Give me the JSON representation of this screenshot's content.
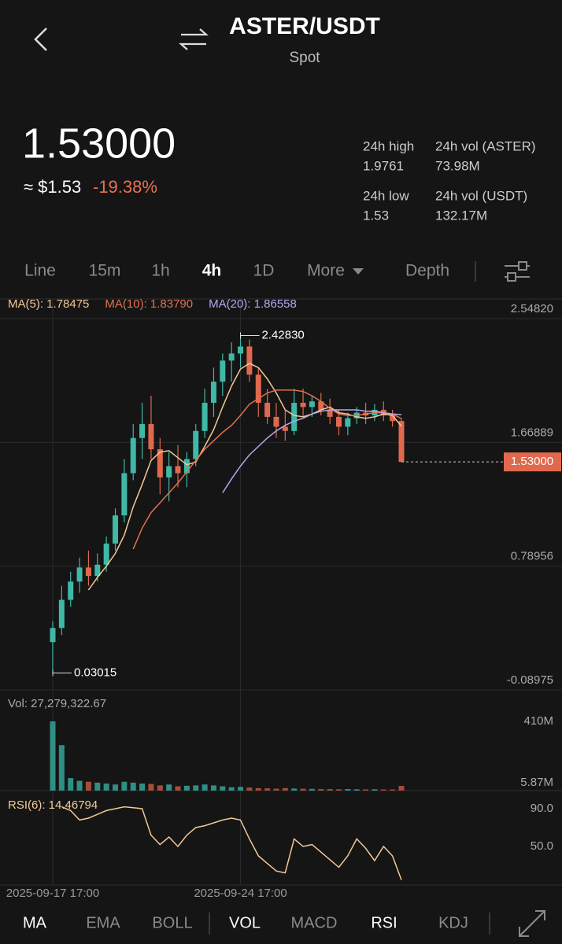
{
  "header": {
    "title": "ASTER/USDT",
    "subtitle": "Spot"
  },
  "ticker": {
    "price": "1.53000",
    "usd": "≈ $1.53",
    "change": "-19.38%",
    "stats": [
      {
        "label": "24h high",
        "value": "1.9761"
      },
      {
        "label": "24h vol (ASTER)",
        "value": "73.98M"
      },
      {
        "label": "24h low",
        "value": "1.53"
      },
      {
        "label": "24h vol (USDT)",
        "value": "132.17M"
      }
    ]
  },
  "tabs": [
    "Line",
    "15m",
    "1h",
    "4h",
    "1D",
    "More",
    "Depth"
  ],
  "active_tab_index": 3,
  "indicators": [
    "MA",
    "EMA",
    "BOLL",
    "VOL",
    "MACD",
    "RSI",
    "KDJ"
  ],
  "active_indicators": [
    0,
    3,
    5
  ],
  "chart_data": [
    {
      "type": "candlestick",
      "categories": [
        "2025-09-17 17:00",
        null,
        null,
        null,
        null,
        null,
        null,
        null,
        null,
        null,
        null,
        null,
        null,
        null,
        null,
        null,
        null,
        null,
        null,
        null,
        null,
        "2025-09-24 17:00",
        null,
        null,
        null,
        null,
        null,
        null,
        null,
        null,
        null,
        null,
        null,
        null,
        null,
        null,
        null,
        null,
        null,
        null
      ],
      "open": [
        0.25,
        0.35,
        0.55,
        0.68,
        0.78,
        0.72,
        0.8,
        0.95,
        1.15,
        1.45,
        1.7,
        1.8,
        1.62,
        1.42,
        1.5,
        1.45,
        1.55,
        1.75,
        1.95,
        2.1,
        2.25,
        2.3,
        2.35,
        2.15,
        1.95,
        1.85,
        1.78,
        1.75,
        1.95,
        1.92,
        1.96,
        1.9,
        1.85,
        1.78,
        1.84,
        1.88,
        1.86,
        1.9,
        1.86,
        1.82
      ],
      "high": [
        0.4,
        0.65,
        0.75,
        0.85,
        0.9,
        0.88,
        1.0,
        1.2,
        1.55,
        1.8,
        1.95,
        2.0,
        1.7,
        1.6,
        1.65,
        1.6,
        1.8,
        2.05,
        2.2,
        2.3,
        2.38,
        2.4283,
        2.4,
        2.2,
        2.05,
        1.95,
        1.9,
        2.05,
        2.05,
        2.0,
        2.02,
        1.98,
        1.9,
        1.88,
        1.92,
        1.95,
        1.94,
        1.96,
        1.9,
        1.84
      ],
      "low": [
        0.03015,
        0.3,
        0.5,
        0.6,
        0.65,
        0.68,
        0.75,
        0.9,
        1.1,
        1.4,
        1.55,
        1.55,
        1.3,
        1.25,
        1.35,
        1.35,
        1.5,
        1.7,
        1.85,
        2.0,
        2.1,
        2.2,
        2.1,
        1.85,
        1.8,
        1.7,
        1.68,
        1.72,
        1.85,
        1.85,
        1.86,
        1.8,
        1.72,
        1.72,
        1.8,
        1.8,
        1.82,
        1.82,
        1.78,
        1.53
      ],
      "close": [
        0.35,
        0.55,
        0.68,
        0.78,
        0.72,
        0.8,
        0.95,
        1.15,
        1.45,
        1.7,
        1.8,
        1.62,
        1.42,
        1.5,
        1.45,
        1.55,
        1.75,
        1.95,
        2.1,
        2.25,
        2.3,
        2.35,
        2.15,
        1.95,
        1.85,
        1.78,
        1.75,
        1.95,
        1.92,
        1.96,
        1.9,
        1.85,
        1.78,
        1.84,
        1.88,
        1.86,
        1.9,
        1.86,
        1.82,
        1.53
      ],
      "up_color": "#3fb8a6",
      "down_color": "#e0694d",
      "series": [
        {
          "name": "MA(5): 1.78475",
          "color": "#f3c896",
          "values": [
            null,
            null,
            null,
            null,
            0.62,
            0.71,
            0.79,
            0.88,
            1.01,
            1.21,
            1.37,
            1.54,
            1.6,
            1.61,
            1.56,
            1.51,
            1.53,
            1.64,
            1.76,
            1.92,
            2.07,
            2.19,
            2.23,
            2.2,
            2.12,
            2.02,
            1.9,
            1.86,
            1.85,
            1.87,
            1.9,
            1.92,
            1.88,
            1.87,
            1.85,
            1.84,
            1.85,
            1.87,
            1.86,
            1.78475
          ]
        },
        {
          "name": "MA(10): 1.83790",
          "color": "#e0714f",
          "values": [
            null,
            null,
            null,
            null,
            null,
            null,
            null,
            null,
            null,
            0.91,
            1.06,
            1.17,
            1.24,
            1.31,
            1.38,
            1.46,
            1.54,
            1.62,
            1.68,
            1.74,
            1.79,
            1.86,
            1.94,
            1.98,
            2.02,
            2.04,
            2.04,
            2.04,
            2.03,
            2.0,
            1.96,
            1.91,
            1.87,
            1.86,
            1.86,
            1.87,
            1.88,
            1.88,
            1.87,
            1.8379
          ]
        },
        {
          "name": "MA(20): 1.86558",
          "color": "#b7a6f2",
          "values": [
            null,
            null,
            null,
            null,
            null,
            null,
            null,
            null,
            null,
            null,
            null,
            null,
            null,
            null,
            null,
            null,
            null,
            null,
            null,
            1.31,
            1.41,
            1.5,
            1.58,
            1.64,
            1.7,
            1.75,
            1.79,
            1.82,
            1.84,
            1.87,
            1.89,
            1.9,
            1.9,
            1.9,
            1.9,
            1.89,
            1.89,
            1.88,
            1.87,
            1.86558
          ]
        }
      ],
      "ylim": [
        -0.08975,
        2.5482
      ],
      "yticks": [
        {
          "value": -0.08975,
          "label": "-0.08975"
        },
        0.78956,
        1.66889,
        {
          "value": 2.5482,
          "label": "2.54820"
        }
      ],
      "annotations": [
        {
          "value": 2.4283,
          "label": "2.42830"
        },
        {
          "value": 0.03015,
          "label": "0.03015"
        }
      ],
      "last_price": {
        "value": 1.53,
        "label": "1.53000"
      }
    },
    {
      "type": "bar",
      "title": "Vol: 27,279,322.67",
      "values": [
        380000000,
        250000000,
        70000000,
        55000000,
        50000000,
        45000000,
        40000000,
        35000000,
        50000000,
        45000000,
        40000000,
        38000000,
        30000000,
        35000000,
        25000000,
        28000000,
        30000000,
        35000000,
        30000000,
        25000000,
        20000000,
        22000000,
        18000000,
        15000000,
        14000000,
        12000000,
        15000000,
        13000000,
        12000000,
        11000000,
        10000000,
        10000000,
        9000000,
        10000000,
        9000000,
        8000000,
        9000000,
        8000000,
        8000000,
        27279322.67
      ],
      "ylim": [
        5870000,
        410000000
      ],
      "yticks": [
        {
          "value": 5870000,
          "label": "5.87M"
        },
        {
          "value": 410000000,
          "label": "410M"
        }
      ]
    },
    {
      "type": "line",
      "title": "RSI(6): 14.46794",
      "color": "#f3c896",
      "values": [
        null,
        92,
        88,
        78,
        80,
        84,
        88,
        90,
        92,
        91,
        90,
        62,
        52,
        60,
        50,
        62,
        70,
        72,
        75,
        78,
        80,
        78,
        58,
        40,
        32,
        24,
        22,
        58,
        50,
        52,
        44,
        36,
        28,
        40,
        58,
        48,
        35,
        50,
        40,
        14.46794
      ],
      "ylim": [
        10,
        100
      ],
      "yticks": [
        {
          "value": 50,
          "label": "50.0"
        },
        {
          "value": 90,
          "label": "90.0"
        }
      ]
    }
  ]
}
